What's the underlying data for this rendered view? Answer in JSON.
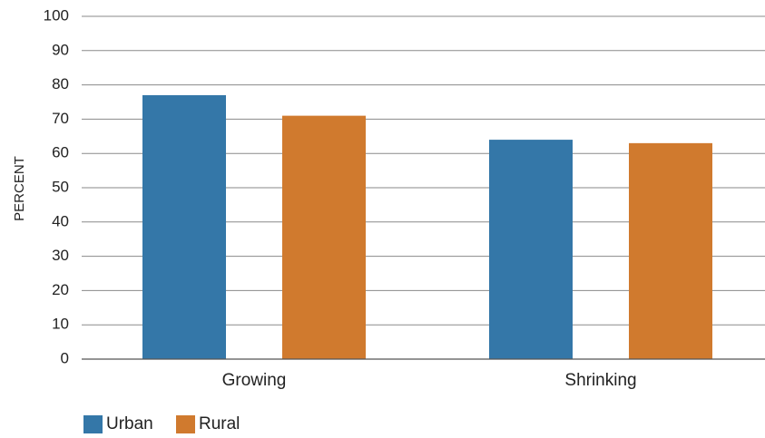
{
  "chart_data": {
    "type": "bar",
    "categories": [
      "Growing",
      "Shrinking"
    ],
    "series": [
      {
        "name": "Urban",
        "values": [
          77,
          64
        ],
        "color": "#3477a8"
      },
      {
        "name": "Rural",
        "values": [
          71,
          63
        ],
        "color": "#d07a2e"
      }
    ],
    "title": "",
    "xlabel": "",
    "ylabel": "PERCENT",
    "ylim": [
      0,
      100
    ],
    "yticks": [
      0,
      10,
      20,
      30,
      40,
      50,
      60,
      70,
      80,
      90,
      100
    ],
    "grid": true,
    "legend_position": "bottom-left"
  }
}
